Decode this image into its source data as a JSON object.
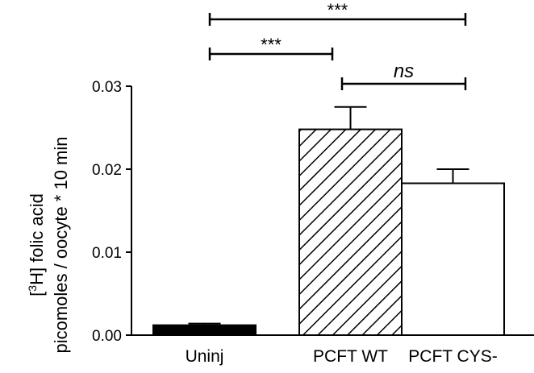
{
  "chart_data": {
    "type": "bar",
    "categories": [
      "Uninj",
      "PCFT WT",
      "PCFT CYS-"
    ],
    "values": [
      0.0012,
      0.0248,
      0.0183
    ],
    "errors": [
      0.0002,
      0.0027,
      0.0017
    ],
    "fills": [
      "solid-black",
      "diagonal-hatch",
      "white"
    ],
    "ylabel_line1_prefix": "[",
    "ylabel_line1_sup": "3",
    "ylabel_line1_suffix": "H] folic acid",
    "ylabel_line2": "picomoles / oocyte * 10 min",
    "ylim": [
      0,
      0.03
    ],
    "yticks": [
      "0.00",
      "0.01",
      "0.02",
      "0.03"
    ],
    "yticks_values": [
      0,
      0.01,
      0.02,
      0.03
    ],
    "grid": false,
    "significance": [
      {
        "from": 0,
        "to": 2,
        "label": "***",
        "italic": false
      },
      {
        "from": 0,
        "to": 1,
        "label": "***",
        "italic": false
      },
      {
        "from": 1,
        "to": 2,
        "label": "ns",
        "italic": true
      }
    ]
  }
}
